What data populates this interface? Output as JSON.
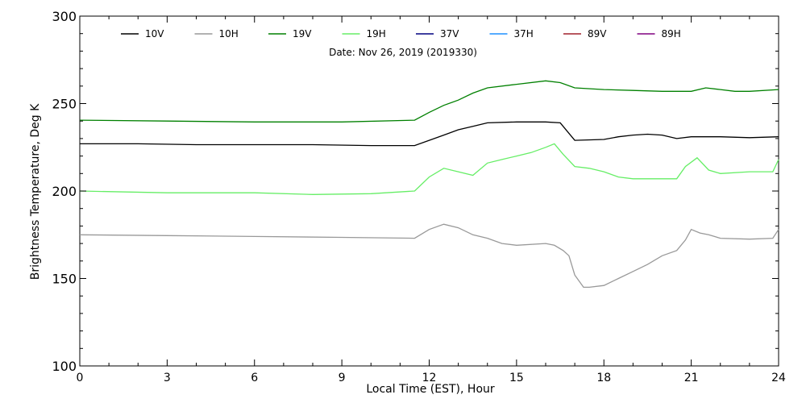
{
  "chart_data": {
    "type": "line",
    "title": "",
    "annotation": "Date: Nov 26, 2019 (2019330)",
    "xlabel": "Local Time (EST), Hour",
    "ylabel": "Brightness Temperature, Deg K",
    "xlim": [
      0,
      24
    ],
    "ylim": [
      100,
      300
    ],
    "x_ticks": [
      0,
      3,
      6,
      9,
      12,
      15,
      18,
      21,
      24
    ],
    "y_ticks": [
      100,
      150,
      200,
      250,
      300
    ],
    "x_tick_labels": [
      "0",
      "3",
      "6",
      "9",
      "12",
      "15",
      "18",
      "21",
      "24"
    ],
    "y_tick_labels": [
      "100",
      "150",
      "200",
      "250",
      "300"
    ],
    "grid": false,
    "legend_position": "top",
    "series": [
      {
        "name": "10V",
        "color": "#000000",
        "points": [
          [
            0,
            227
          ],
          [
            2,
            227
          ],
          [
            4,
            226.5
          ],
          [
            6,
            226.5
          ],
          [
            8,
            226.5
          ],
          [
            10,
            226
          ],
          [
            11.5,
            226
          ],
          [
            12,
            229
          ],
          [
            12.5,
            232
          ],
          [
            13,
            235
          ],
          [
            13.5,
            237
          ],
          [
            14,
            239
          ],
          [
            15,
            239.5
          ],
          [
            16,
            239.5
          ],
          [
            16.5,
            239
          ],
          [
            16.8,
            233
          ],
          [
            17,
            229
          ],
          [
            18,
            229.5
          ],
          [
            18.5,
            231
          ],
          [
            19,
            232
          ],
          [
            19.5,
            232.5
          ],
          [
            20,
            232
          ],
          [
            20.5,
            230
          ],
          [
            21,
            231
          ],
          [
            22,
            231
          ],
          [
            23,
            230.5
          ],
          [
            24,
            231
          ]
        ]
      },
      {
        "name": "10H",
        "color": "#999999",
        "points": [
          [
            0,
            175
          ],
          [
            3,
            174.5
          ],
          [
            6,
            174
          ],
          [
            9,
            173.5
          ],
          [
            11.5,
            173
          ],
          [
            12,
            178
          ],
          [
            12.5,
            181
          ],
          [
            13,
            179
          ],
          [
            13.5,
            175
          ],
          [
            14,
            173
          ],
          [
            14.5,
            170
          ],
          [
            15,
            169
          ],
          [
            16,
            170
          ],
          [
            16.3,
            169
          ],
          [
            16.6,
            166
          ],
          [
            16.8,
            163
          ],
          [
            17,
            152
          ],
          [
            17.3,
            145
          ],
          [
            17.5,
            145
          ],
          [
            18,
            146
          ],
          [
            18.5,
            150
          ],
          [
            19,
            154
          ],
          [
            19.5,
            158
          ],
          [
            20,
            163
          ],
          [
            20.5,
            166
          ],
          [
            20.8,
            172
          ],
          [
            21,
            178
          ],
          [
            21.3,
            176
          ],
          [
            21.6,
            175
          ],
          [
            22,
            173
          ],
          [
            23,
            172.5
          ],
          [
            23.8,
            173
          ],
          [
            24,
            178
          ]
        ]
      },
      {
        "name": "19V",
        "color": "#008000",
        "points": [
          [
            0,
            240.5
          ],
          [
            3,
            240
          ],
          [
            6,
            239.5
          ],
          [
            9,
            239.5
          ],
          [
            11.5,
            240.5
          ],
          [
            12,
            245
          ],
          [
            12.5,
            249
          ],
          [
            13,
            252
          ],
          [
            13.5,
            256
          ],
          [
            14,
            259
          ],
          [
            15,
            261
          ],
          [
            16,
            263
          ],
          [
            16.5,
            262
          ],
          [
            17,
            259
          ],
          [
            18,
            258
          ],
          [
            19,
            257.5
          ],
          [
            20,
            257
          ],
          [
            21,
            257
          ],
          [
            21.5,
            259
          ],
          [
            22,
            258
          ],
          [
            22.5,
            257
          ],
          [
            23,
            257
          ],
          [
            24,
            258
          ]
        ]
      },
      {
        "name": "19H",
        "color": "#66ee66",
        "points": [
          [
            0,
            200
          ],
          [
            3,
            199
          ],
          [
            6,
            199
          ],
          [
            8,
            198
          ],
          [
            10,
            198.5
          ],
          [
            11.5,
            200
          ],
          [
            12,
            208
          ],
          [
            12.5,
            213
          ],
          [
            13,
            211
          ],
          [
            13.5,
            209
          ],
          [
            14,
            216
          ],
          [
            14.5,
            218
          ],
          [
            15,
            220
          ],
          [
            15.5,
            222
          ],
          [
            16,
            225
          ],
          [
            16.3,
            227
          ],
          [
            16.6,
            221
          ],
          [
            17,
            214
          ],
          [
            17.5,
            213
          ],
          [
            18,
            211
          ],
          [
            18.5,
            208
          ],
          [
            19,
            207
          ],
          [
            20,
            207
          ],
          [
            20.5,
            207
          ],
          [
            20.8,
            214
          ],
          [
            21.2,
            219
          ],
          [
            21.6,
            212
          ],
          [
            22,
            210
          ],
          [
            23,
            211
          ],
          [
            23.8,
            211
          ],
          [
            24,
            218
          ]
        ]
      },
      {
        "name": "37V",
        "color": "#000080",
        "points": []
      },
      {
        "name": "37H",
        "color": "#1e90ff",
        "points": []
      },
      {
        "name": "89V",
        "color": "#a0202c",
        "points": []
      },
      {
        "name": "89H",
        "color": "#800080",
        "points": []
      }
    ]
  }
}
